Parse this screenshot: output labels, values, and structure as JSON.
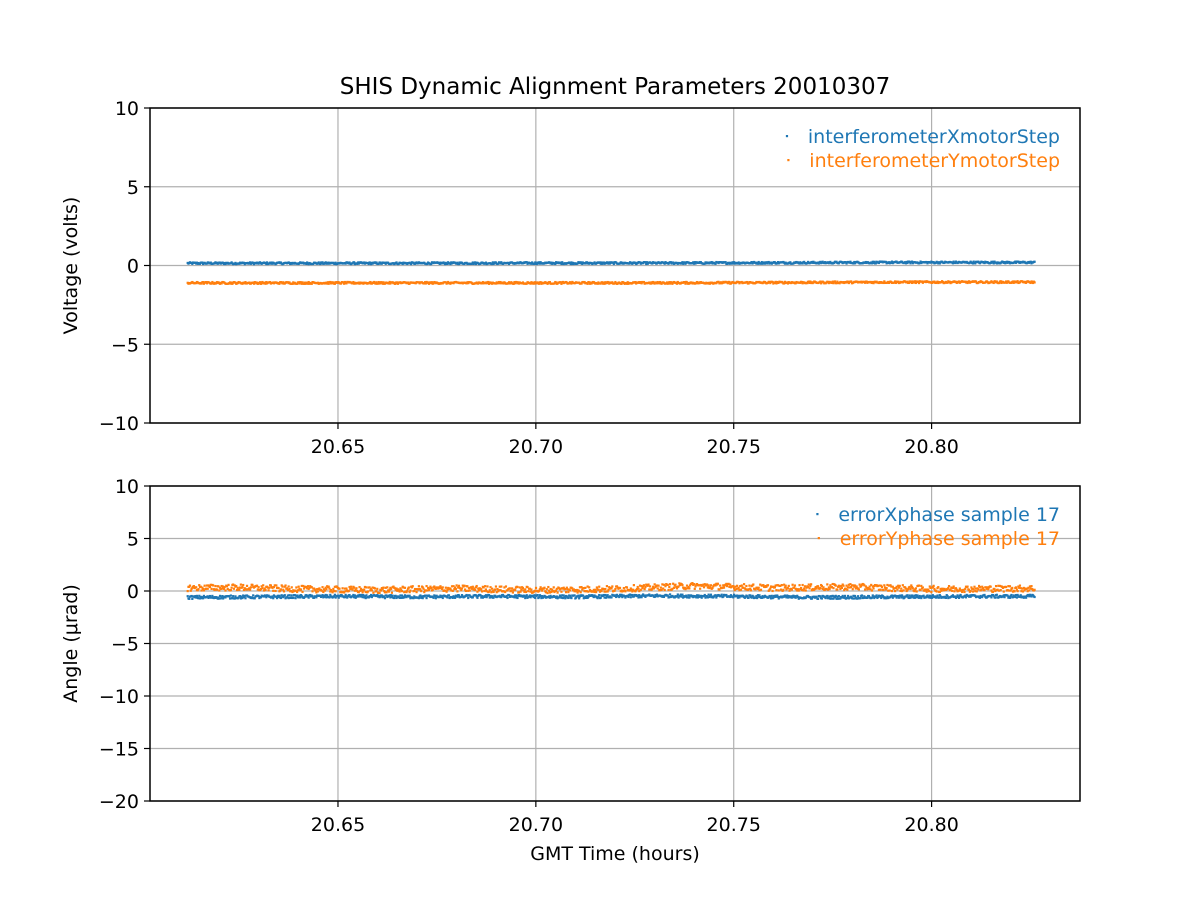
{
  "figure": {
    "title": "SHIS Dynamic Alignment Parameters 20010307"
  },
  "chart_data": [
    {
      "type": "scatter",
      "xlabel": "",
      "ylabel": "Voltage (volts)",
      "xlim": [
        20.6025,
        20.8375
      ],
      "ylim": [
        -10,
        10
      ],
      "xticks": [
        20.65,
        20.7,
        20.75,
        20.8
      ],
      "xtick_labels": [
        "20.65",
        "20.70",
        "20.75",
        "20.80"
      ],
      "yticks": [
        -10,
        -5,
        0,
        5,
        10
      ],
      "ytick_labels": [
        "−10",
        "−5",
        "0",
        "5",
        "10"
      ],
      "grid": true,
      "legend_position": "top-right",
      "x_range": [
        20.612,
        20.826
      ],
      "series": [
        {
          "name": "interferometerXmotorStep",
          "color": "#1f77b4",
          "x": [
            20.612,
            20.64,
            20.67,
            20.7,
            20.73,
            20.76,
            20.79,
            20.826
          ],
          "y": [
            0.15,
            0.15,
            0.15,
            0.16,
            0.16,
            0.18,
            0.2,
            0.2
          ],
          "jitter": 0.06
        },
        {
          "name": "interferometerYmotorStep",
          "color": "#ff7f0e",
          "x": [
            20.612,
            20.64,
            20.67,
            20.7,
            20.73,
            20.76,
            20.79,
            20.826
          ],
          "y": [
            -1.1,
            -1.1,
            -1.1,
            -1.1,
            -1.1,
            -1.08,
            -1.05,
            -1.05
          ],
          "jitter": 0.06
        }
      ]
    },
    {
      "type": "scatter",
      "xlabel": "GMT Time (hours)",
      "ylabel": "Angle (μrad)",
      "xlim": [
        20.6025,
        20.8375
      ],
      "ylim": [
        -20,
        10
      ],
      "xticks": [
        20.65,
        20.7,
        20.75,
        20.8
      ],
      "xtick_labels": [
        "20.65",
        "20.70",
        "20.75",
        "20.80"
      ],
      "yticks": [
        -20,
        -15,
        -10,
        -5,
        0,
        5,
        10
      ],
      "ytick_labels": [
        "−20",
        "−15",
        "−10",
        "−5",
        "0",
        "5",
        "10"
      ],
      "grid": true,
      "legend_position": "top-right",
      "x_range": [
        20.612,
        20.826
      ],
      "series": [
        {
          "name": "errorXphase sample 17",
          "color": "#1f77b4",
          "x": [
            20.612,
            20.63,
            20.65,
            20.67,
            20.69,
            20.71,
            20.73,
            20.75,
            20.77,
            20.79,
            20.81,
            20.826
          ],
          "y": [
            -0.6,
            -0.55,
            -0.5,
            -0.55,
            -0.5,
            -0.55,
            -0.45,
            -0.5,
            -0.6,
            -0.55,
            -0.5,
            -0.5
          ],
          "jitter": 0.15
        },
        {
          "name": "errorYphase sample 17",
          "color": "#ff7f0e",
          "x": [
            20.612,
            20.625,
            20.64,
            20.66,
            20.68,
            20.7,
            20.72,
            20.74,
            20.76,
            20.78,
            20.8,
            20.826
          ],
          "y": [
            0.3,
            0.35,
            0.2,
            0.1,
            0.25,
            0.1,
            0.2,
            0.5,
            0.3,
            0.4,
            0.2,
            0.25
          ],
          "jitter": 0.3
        }
      ]
    }
  ]
}
